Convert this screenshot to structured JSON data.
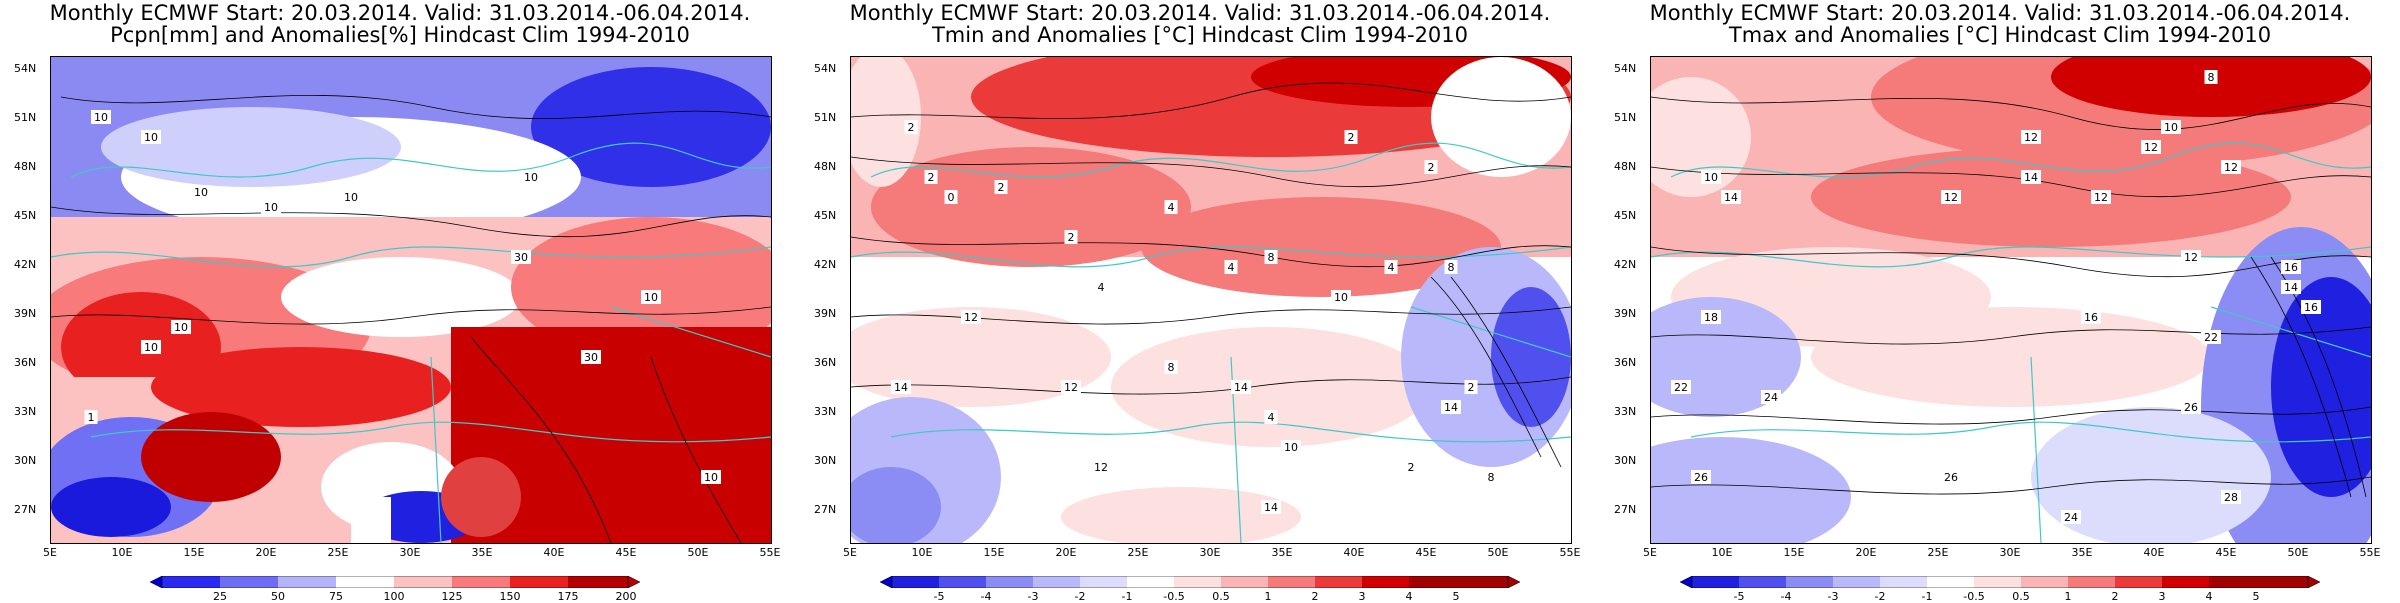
{
  "panels": [
    {
      "id": "pcpn",
      "title_line1": "Monthly ECMWF Start: 20.03.2014. Valid: 31.03.2014.-06.04.2014.",
      "title_line2": "Pcpn[mm] and Anomalies[%] Hindcast Clim 1994-2010",
      "lat_labels": [
        "54N",
        "51N",
        "48N",
        "45N",
        "42N",
        "39N",
        "36N",
        "33N",
        "30N",
        "27N"
      ],
      "lon_labels": [
        "5E",
        "10E",
        "15E",
        "20E",
        "25E",
        "30E",
        "35E",
        "40E",
        "45E",
        "50E",
        "55E"
      ],
      "colorbar_labels": [
        "25",
        "50",
        "75",
        "100",
        "125",
        "150",
        "175",
        "200"
      ],
      "colorbar_colors": [
        "#0000c8",
        "#2a2af0",
        "#6e6ef5",
        "#b4b4fa",
        "#ffffff",
        "#fcc2c2",
        "#f87a7a",
        "#e82020",
        "#b40000"
      ],
      "contour_labels": [
        "10",
        "10",
        "10",
        "10",
        "10",
        "10",
        "10",
        "10",
        "1",
        "30",
        "10",
        "30",
        "10"
      ]
    },
    {
      "id": "tmin",
      "title_line1": "Monthly ECMWF Start: 20.03.2014. Valid: 31.03.2014.-06.04.2014.",
      "title_line2": "Tmin and Anomalies [°C] Hindcast Clim 1994-2010",
      "lat_labels": [
        "54N",
        "51N",
        "48N",
        "45N",
        "42N",
        "39N",
        "36N",
        "33N",
        "30N",
        "27N"
      ],
      "lon_labels": [
        "5E",
        "10E",
        "15E",
        "20E",
        "25E",
        "30E",
        "35E",
        "40E",
        "45E",
        "50E",
        "55E"
      ],
      "colorbar_labels": [
        "-5",
        "-4",
        "-3",
        "-2",
        "-1",
        "-0.5",
        "0.5",
        "1",
        "2",
        "3",
        "4",
        "5"
      ],
      "colorbar_colors": [
        "#0000c8",
        "#2020e0",
        "#5050ee",
        "#8c8cf5",
        "#b8b8fa",
        "#dcdcfd",
        "#ffffff",
        "#fde0e0",
        "#fab4b4",
        "#f57a7a",
        "#ea3a3a",
        "#d00000",
        "#a00000"
      ],
      "contour_labels": [
        "2",
        "2",
        "0",
        "2",
        "2",
        "4",
        "4",
        "4",
        "8",
        "10",
        "4",
        "8",
        "2",
        "2",
        "12",
        "14",
        "12",
        "8",
        "14",
        "4",
        "10",
        "2",
        "14",
        "12",
        "2",
        "8",
        "14"
      ]
    },
    {
      "id": "tmax",
      "title_line1": "Monthly ECMWF Start: 20.03.2014. Valid: 31.03.2014.-06.04.2014.",
      "title_line2": "Tmax and Anomalies [°C] Hindcast Clim 1994-2010",
      "lat_labels": [
        "54N",
        "51N",
        "48N",
        "45N",
        "42N",
        "39N",
        "36N",
        "33N",
        "30N",
        "27N"
      ],
      "lon_labels": [
        "5E",
        "10E",
        "15E",
        "20E",
        "25E",
        "30E",
        "35E",
        "40E",
        "45E",
        "50E",
        "55E"
      ],
      "colorbar_labels": [
        "-5",
        "-4",
        "-3",
        "-2",
        "-1",
        "-0.5",
        "0.5",
        "1",
        "2",
        "3",
        "4",
        "5"
      ],
      "colorbar_colors": [
        "#0000c8",
        "#2020e0",
        "#5050ee",
        "#8c8cf5",
        "#b8b8fa",
        "#dcdcfd",
        "#ffffff",
        "#fde0e0",
        "#fab4b4",
        "#f57a7a",
        "#ea3a3a",
        "#d00000",
        "#a00000"
      ],
      "contour_labels": [
        "8",
        "12",
        "10",
        "12",
        "12",
        "12",
        "10",
        "14",
        "14",
        "12",
        "12",
        "16",
        "16",
        "18",
        "22",
        "24",
        "26",
        "26",
        "24",
        "22",
        "28",
        "26",
        "14",
        "16"
      ]
    }
  ]
}
